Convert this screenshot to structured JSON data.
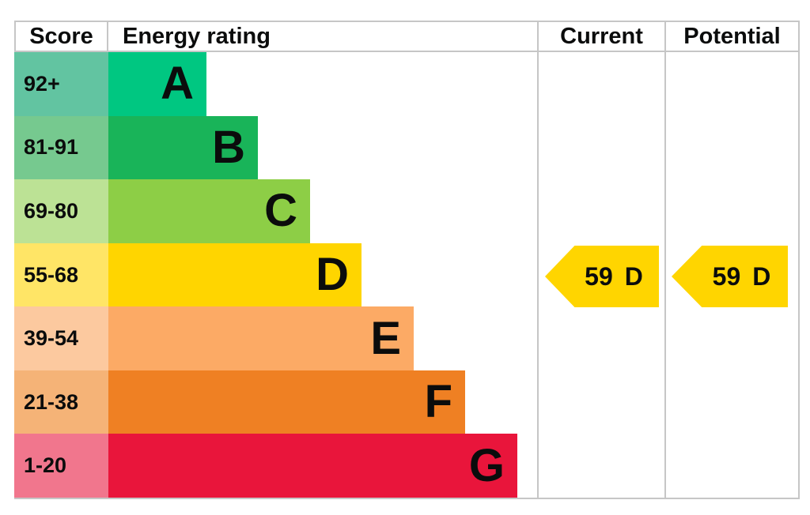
{
  "header": {
    "score": "Score",
    "rating": "Energy rating",
    "current": "Current",
    "potential": "Potential"
  },
  "chart_data": {
    "type": "bar",
    "chart_kind": "epc-energy-rating",
    "categories": [
      "A",
      "B",
      "C",
      "D",
      "E",
      "F",
      "G"
    ],
    "score_ranges": [
      "92+",
      "81-91",
      "69-80",
      "55-68",
      "39-54",
      "21-38",
      "1-20"
    ],
    "bands": [
      {
        "letter": "A",
        "score_range": "92+",
        "color": "#00c781",
        "score_cell_color": "#62c4a1"
      },
      {
        "letter": "B",
        "score_range": "81-91",
        "color": "#19b459",
        "score_cell_color": "#76c98f"
      },
      {
        "letter": "C",
        "score_range": "69-80",
        "color": "#8dce46",
        "score_cell_color": "#bce295"
      },
      {
        "letter": "D",
        "score_range": "55-68",
        "color": "#ffd500",
        "score_cell_color": "#ffe566"
      },
      {
        "letter": "E",
        "score_range": "39-54",
        "color": "#fcaa65",
        "score_cell_color": "#fcc99f"
      },
      {
        "letter": "F",
        "score_range": "21-38",
        "color": "#ef8023",
        "score_cell_color": "#f5b377"
      },
      {
        "letter": "G",
        "score_range": "1-20",
        "color": "#e9153b",
        "score_cell_color": "#f1768d"
      }
    ],
    "current": {
      "value": "59",
      "band": "D",
      "color": "#ffd500"
    },
    "potential": {
      "value": "59",
      "band": "D",
      "color": "#ffd500"
    }
  }
}
